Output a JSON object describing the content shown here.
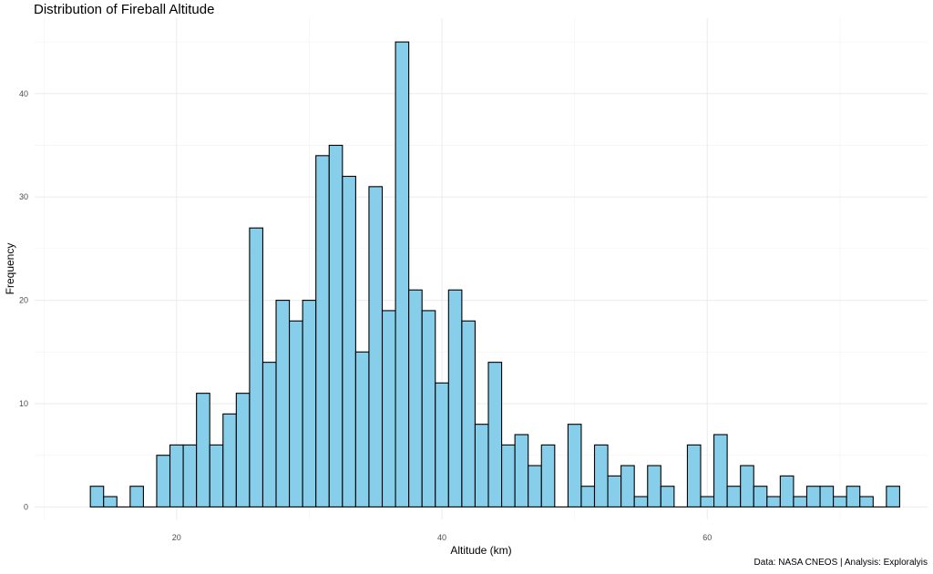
{
  "chart_data": {
    "type": "bar",
    "title": "Distribution of Fireball Altitude",
    "xlabel": "Altitude (km)",
    "ylabel": "Frequency",
    "caption": "Data: NASA CNEOS | Analysis: Exploralyis",
    "binwidth": 1,
    "x": [
      14,
      15,
      16,
      17,
      18,
      19,
      20,
      21,
      22,
      23,
      24,
      25,
      26,
      27,
      28,
      29,
      30,
      31,
      32,
      33,
      34,
      35,
      36,
      37,
      38,
      39,
      40,
      41,
      42,
      43,
      44,
      45,
      46,
      47,
      48,
      49,
      50,
      51,
      52,
      53,
      54,
      55,
      56,
      57,
      58,
      59,
      60,
      61,
      62,
      63,
      64,
      65,
      66,
      67,
      68,
      69,
      70,
      71,
      72,
      73,
      74
    ],
    "values": [
      2,
      1,
      0,
      2,
      0,
      5,
      6,
      6,
      11,
      6,
      9,
      11,
      27,
      14,
      20,
      18,
      20,
      34,
      35,
      32,
      15,
      31,
      19,
      45,
      21,
      19,
      12,
      21,
      18,
      8,
      14,
      6,
      7,
      4,
      6,
      0,
      8,
      2,
      6,
      3,
      4,
      1,
      4,
      2,
      0,
      6,
      1,
      7,
      2,
      4,
      2,
      1,
      3,
      1,
      2,
      2,
      1,
      2,
      1,
      0,
      2
    ],
    "xticks": [
      "20",
      "40",
      "60"
    ],
    "yticks": [
      "0",
      "10",
      "20",
      "30",
      "40"
    ],
    "xlim": [
      9.3,
      76.6
    ],
    "ylim": [
      -1.2,
      47.3
    ],
    "grid": true,
    "bar_fill": "#87CEEB",
    "bar_stroke": "#000000"
  }
}
